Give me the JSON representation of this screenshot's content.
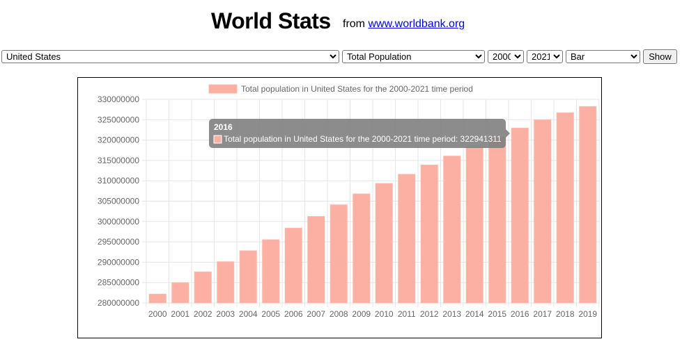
{
  "header": {
    "title": "World Stats",
    "from_label": "from",
    "link_text": "www.worldbank.org"
  },
  "controls": {
    "country": "United States",
    "indicator": "Total Population",
    "start_year": "2000",
    "end_year": "2021",
    "chart_type": "Bar",
    "show_label": "Show"
  },
  "colors": {
    "bar_fill": "#fcb0a3",
    "bar_stroke": "#fdb8aa",
    "grid": "#e5e5e5",
    "tooltip_bg": "#7f7f7f"
  },
  "tooltip": {
    "title": "2016",
    "body": "Total population in United States for the 2000-2021 time period: 322941311"
  },
  "chart_data": {
    "type": "bar",
    "title": "",
    "xlabel": "",
    "ylabel": "",
    "legend": "top",
    "grid": true,
    "ylim": [
      280000000,
      330000000
    ],
    "yticks": [
      280000000,
      285000000,
      290000000,
      295000000,
      300000000,
      305000000,
      310000000,
      315000000,
      320000000,
      325000000,
      330000000
    ],
    "categories": [
      "2000",
      "2001",
      "2002",
      "2003",
      "2004",
      "2005",
      "2006",
      "2007",
      "2008",
      "2009",
      "2010",
      "2011",
      "2012",
      "2013",
      "2014",
      "2015",
      "2016",
      "2017",
      "2018",
      "2019"
    ],
    "series": [
      {
        "name": "Total population in United States for the 2000-2021 time period",
        "values": [
          282162411,
          284968955,
          287625193,
          290107933,
          292805298,
          295516599,
          298379912,
          301231207,
          304093966,
          306771529,
          309327143,
          311583481,
          313877662,
          316059947,
          318386329,
          320738994,
          322941311,
          324985539,
          326687501,
          328239523
        ]
      }
    ]
  }
}
